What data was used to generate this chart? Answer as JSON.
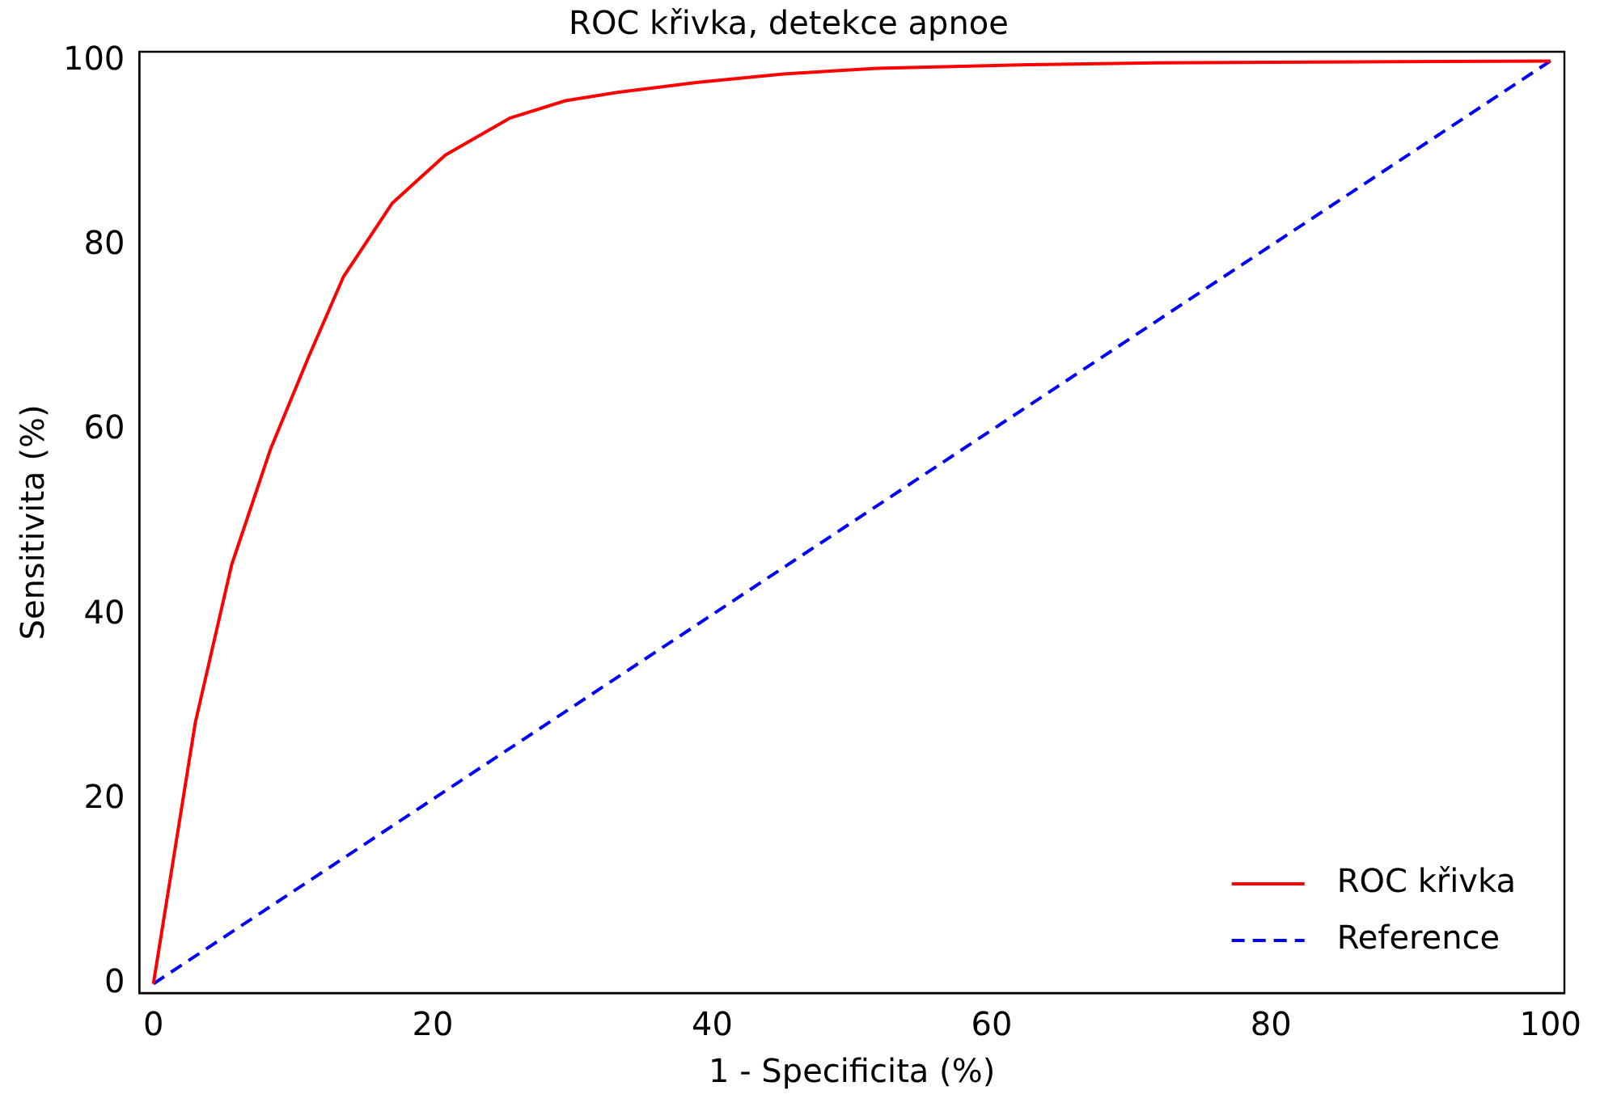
{
  "chart_data": {
    "type": "line",
    "title": "ROC křivka, detekce apnoe",
    "xlabel": "1 - Specificita (%)",
    "ylabel": "Sensitivita (%)",
    "xlim": [
      -1,
      101
    ],
    "ylim": [
      -1,
      101
    ],
    "xticks": [
      0,
      20,
      40,
      60,
      80,
      100
    ],
    "yticks": [
      0,
      20,
      40,
      60,
      80,
      100
    ],
    "grid": false,
    "legend": "bottom right",
    "marker": "none",
    "series": [
      {
        "name": "ROC křivka",
        "color": "#ff0000",
        "line_style": "solid",
        "x": [
          0,
          3.0,
          5.6,
          8.4,
          11.1,
          13.6,
          17.1,
          20.9,
          25.5,
          29.5,
          33.2,
          39,
          45.1,
          51.8,
          62.8,
          71.7,
          100
        ],
        "values": [
          0,
          28.3,
          45.4,
          58,
          67.9,
          76.6,
          84.6,
          89.8,
          93.8,
          95.7,
          96.6,
          97.7,
          98.6,
          99.2,
          99.6,
          99.8,
          100
        ]
      },
      {
        "name": "Reference",
        "color": "#0000ff",
        "line_style": "dashed",
        "x": [
          0,
          100
        ],
        "values": [
          0,
          100
        ]
      }
    ]
  }
}
